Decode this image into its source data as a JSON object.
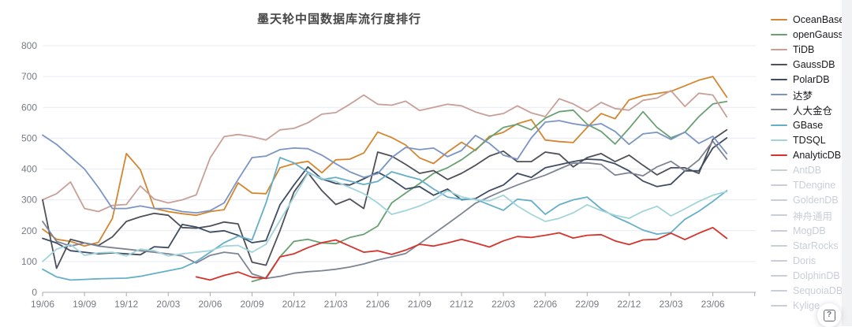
{
  "title": "墨天轮中国数据库流行度排行",
  "help": {
    "glyph": "?"
  },
  "axis_colors": {
    "grid": "#e6ecf4",
    "axis": "#a6aab0",
    "label": "#757b85"
  },
  "legend": {
    "disabled_color": "#c9ced8",
    "disabled_items": [
      "AntDB",
      "TDengine",
      "GoldenDB",
      "神舟通用",
      "MogDB",
      "StarRocks",
      "Doris",
      "DolphinDB",
      "SequoiaDB",
      "Kylige"
    ]
  },
  "chart_data": {
    "type": "line",
    "title": "墨天轮中国数据库流行度排行",
    "xlabel": "",
    "ylabel": "",
    "ylim": [
      0,
      800
    ],
    "y_ticks": [
      0,
      100,
      200,
      300,
      400,
      500,
      600,
      700,
      800
    ],
    "grid": true,
    "legend_position": "right",
    "x": [
      "19/06",
      "19/07",
      "19/08",
      "19/09",
      "19/10",
      "19/11",
      "19/12",
      "20/01",
      "20/02",
      "20/03",
      "20/04",
      "20/05",
      "20/06",
      "20/07",
      "20/08",
      "20/09",
      "20/10",
      "20/11",
      "20/12",
      "21/01",
      "21/02",
      "21/03",
      "21/04",
      "21/05",
      "21/06",
      "21/07",
      "21/08",
      "21/09",
      "21/10",
      "21/11",
      "21/12",
      "22/01",
      "22/02",
      "22/03",
      "22/04",
      "22/05",
      "22/06",
      "22/07",
      "22/08",
      "22/09",
      "22/10",
      "22/11",
      "22/12",
      "23/01",
      "23/02",
      "23/03",
      "23/04",
      "23/05",
      "23/06",
      "23/07"
    ],
    "x_tick_labels": [
      "19/06",
      "19/09",
      "19/12",
      "20/03",
      "20/06",
      "20/09",
      "20/12",
      "21/03",
      "21/06",
      "21/09",
      "21/12",
      "22/03",
      "22/06",
      "22/09",
      "22/12",
      "23/03",
      "23/06"
    ],
    "series": [
      {
        "name": "OceanBase",
        "color": "#d4862f",
        "values": [
          205,
          172,
          165,
          150,
          162,
          240,
          450,
          398,
          272,
          262,
          255,
          250,
          262,
          268,
          355,
          322,
          320,
          404,
          417,
          425,
          388,
          430,
          432,
          452,
          520,
          502,
          478,
          436,
          418,
          455,
          487,
          460,
          506,
          519,
          547,
          560,
          494,
          489,
          486,
          535,
          580,
          563,
          624,
          638,
          645,
          652,
          670,
          688,
          700,
          633
        ]
      },
      {
        "name": "openGauss",
        "color": "#69a173",
        "values": [
          null,
          null,
          null,
          null,
          null,
          null,
          null,
          null,
          null,
          null,
          null,
          null,
          null,
          null,
          null,
          35,
          48,
          115,
          165,
          172,
          160,
          158,
          178,
          188,
          215,
          290,
          322,
          353,
          386,
          404,
          430,
          463,
          501,
          535,
          545,
          527,
          565,
          586,
          591,
          545,
          522,
          481,
          532,
          586,
          535,
          501,
          519,
          570,
          611,
          619
        ]
      },
      {
        "name": "TiDB",
        "color": "#c8a097",
        "values": [
          300,
          320,
          358,
          272,
          262,
          282,
          285,
          345,
          302,
          290,
          300,
          316,
          436,
          505,
          512,
          505,
          494,
          527,
          532,
          550,
          578,
          583,
          610,
          640,
          610,
          607,
          620,
          590,
          600,
          610,
          605,
          585,
          572,
          580,
          605,
          582,
          570,
          628,
          611,
          586,
          616,
          596,
          591,
          623,
          630,
          654,
          603,
          646,
          640,
          569
        ]
      },
      {
        "name": "GaussDB",
        "color": "#4f5158",
        "values": [
          300,
          78,
          172,
          160,
          152,
          180,
          230,
          245,
          256,
          250,
          210,
          208,
          215,
          228,
          222,
          98,
          88,
          200,
          325,
          388,
          330,
          285,
          303,
          272,
          455,
          442,
          415,
          386,
          395,
          366,
          386,
          412,
          442,
          458,
          424,
          424,
          455,
          448,
          407,
          437,
          450,
          424,
          445,
          412,
          381,
          404,
          404,
          386,
          496,
          527
        ]
      },
      {
        "name": "PolarDB",
        "color": "#3e4d63",
        "values": [
          175,
          160,
          135,
          130,
          125,
          128,
          125,
          122,
          148,
          145,
          220,
          212,
          195,
          200,
          185,
          161,
          168,
          284,
          348,
          407,
          368,
          353,
          348,
          368,
          390,
          366,
          335,
          343,
          315,
          335,
          300,
          304,
          330,
          348,
          386,
          373,
          404,
          414,
          424,
          432,
          430,
          417,
          394,
          361,
          343,
          351,
          394,
          394,
          468,
          501
        ]
      },
      {
        "name": "达梦",
        "color": "#7a95c4",
        "values": [
          510,
          480,
          440,
          400,
          340,
          272,
          272,
          280,
          272,
          272,
          262,
          258,
          265,
          290,
          366,
          437,
          442,
          463,
          468,
          466,
          445,
          417,
          391,
          373,
          385,
          437,
          470,
          463,
          468,
          440,
          460,
          509,
          483,
          445,
          432,
          501,
          552,
          557,
          547,
          540,
          547,
          522,
          480,
          514,
          519,
          496,
          520,
          483,
          506,
          450
        ]
      },
      {
        "name": "人大金仓",
        "color": "#7e8494",
        "values": [
          230,
          165,
          150,
          160,
          150,
          145,
          140,
          135,
          130,
          125,
          118,
          95,
          120,
          130,
          125,
          60,
          45,
          52,
          62,
          67,
          70,
          75,
          82,
          92,
          105,
          115,
          126,
          158,
          190,
          222,
          255,
          289,
          310,
          330,
          348,
          365,
          380,
          400,
          419,
          420,
          415,
          380,
          388,
          378,
          407,
          425,
          394,
          430,
          490,
          432
        ]
      },
      {
        "name": "GBase",
        "color": "#66afc8",
        "values": [
          75,
          50,
          40,
          42,
          44,
          45,
          46,
          52,
          61,
          70,
          79,
          100,
          130,
          161,
          182,
          170,
          290,
          437,
          420,
          390,
          366,
          373,
          361,
          350,
          360,
          391,
          378,
          366,
          335,
          309,
          302,
          302,
          284,
          266,
          302,
          297,
          253,
          284,
          300,
          309,
          271,
          245,
          225,
          202,
          189,
          194,
          237,
          263,
          295,
          330
        ]
      },
      {
        "name": "TDSQL",
        "color": "#a2d4dc",
        "values": [
          100,
          140,
          155,
          120,
          128,
          130,
          118,
          140,
          135,
          118,
          125,
          130,
          135,
          150,
          152,
          130,
          156,
          233,
          309,
          386,
          370,
          360,
          340,
          320,
          290,
          253,
          265,
          280,
          300,
          330,
          310,
          300,
          297,
          315,
          280,
          253,
          230,
          240,
          258,
          284,
          265,
          250,
          240,
          263,
          279,
          248,
          271,
          295,
          315,
          327
        ]
      },
      {
        "name": "AnalyticDB",
        "color": "#d5342c",
        "values": [
          null,
          null,
          null,
          null,
          null,
          null,
          null,
          null,
          null,
          null,
          null,
          50,
          40,
          55,
          66,
          49,
          45,
          115,
          125,
          145,
          161,
          170,
          150,
          130,
          135,
          123,
          137,
          156,
          150,
          160,
          172,
          160,
          147,
          167,
          181,
          178,
          185,
          193,
          176,
          185,
          187,
          167,
          155,
          170,
          172,
          192,
          171,
          192,
          210,
          175
        ]
      }
    ]
  }
}
